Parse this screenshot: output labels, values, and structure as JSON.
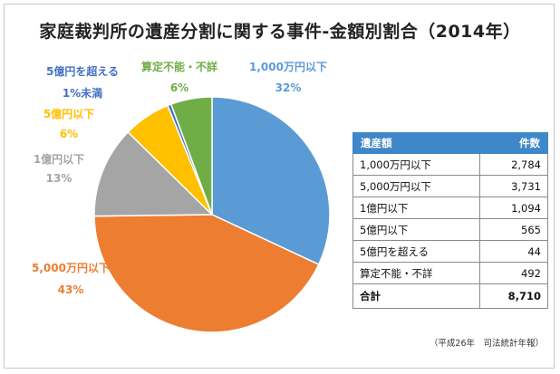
{
  "title": "家庭裁判所の遺産分割に関する事件-金額別割合（2014年）",
  "chart_data": {
    "type": "pie",
    "title": "家庭裁判所の遺産分割に関する事件-金額別割合（2014年）",
    "slices": [
      {
        "label": "1,000万円以下",
        "percent_label": "32%",
        "value": 2784,
        "color": "#5b9bd5"
      },
      {
        "label": "5,000万円以下",
        "percent_label": "43%",
        "value": 3731,
        "color": "#ed7d31"
      },
      {
        "label": "1億円以下",
        "percent_label": "13%",
        "value": 1094,
        "color": "#a5a5a5"
      },
      {
        "label": "5億円以下",
        "percent_label": "6%",
        "value": 565,
        "color": "#ffc000"
      },
      {
        "label": "5億円を超える",
        "percent_label": "1%未満",
        "value": 44,
        "color": "#4472c4"
      },
      {
        "label": "算定不能・不詳",
        "percent_label": "6%",
        "value": 492,
        "color": "#70ad47"
      }
    ],
    "start_angle_deg": 0,
    "direction": "clockwise"
  },
  "table": {
    "headers": [
      "遺産額",
      "件数"
    ],
    "rows": [
      [
        "1,000万円以下",
        "2,784"
      ],
      [
        "5,000万円以下",
        "3,731"
      ],
      [
        "1億円以下",
        "1,094"
      ],
      [
        "5億円以下",
        "565"
      ],
      [
        "5億円を超える",
        "44"
      ],
      [
        "算定不能・不詳",
        "492"
      ]
    ],
    "total": [
      "合計",
      "8,710"
    ]
  },
  "source": "（平成26年　司法統計年報）"
}
